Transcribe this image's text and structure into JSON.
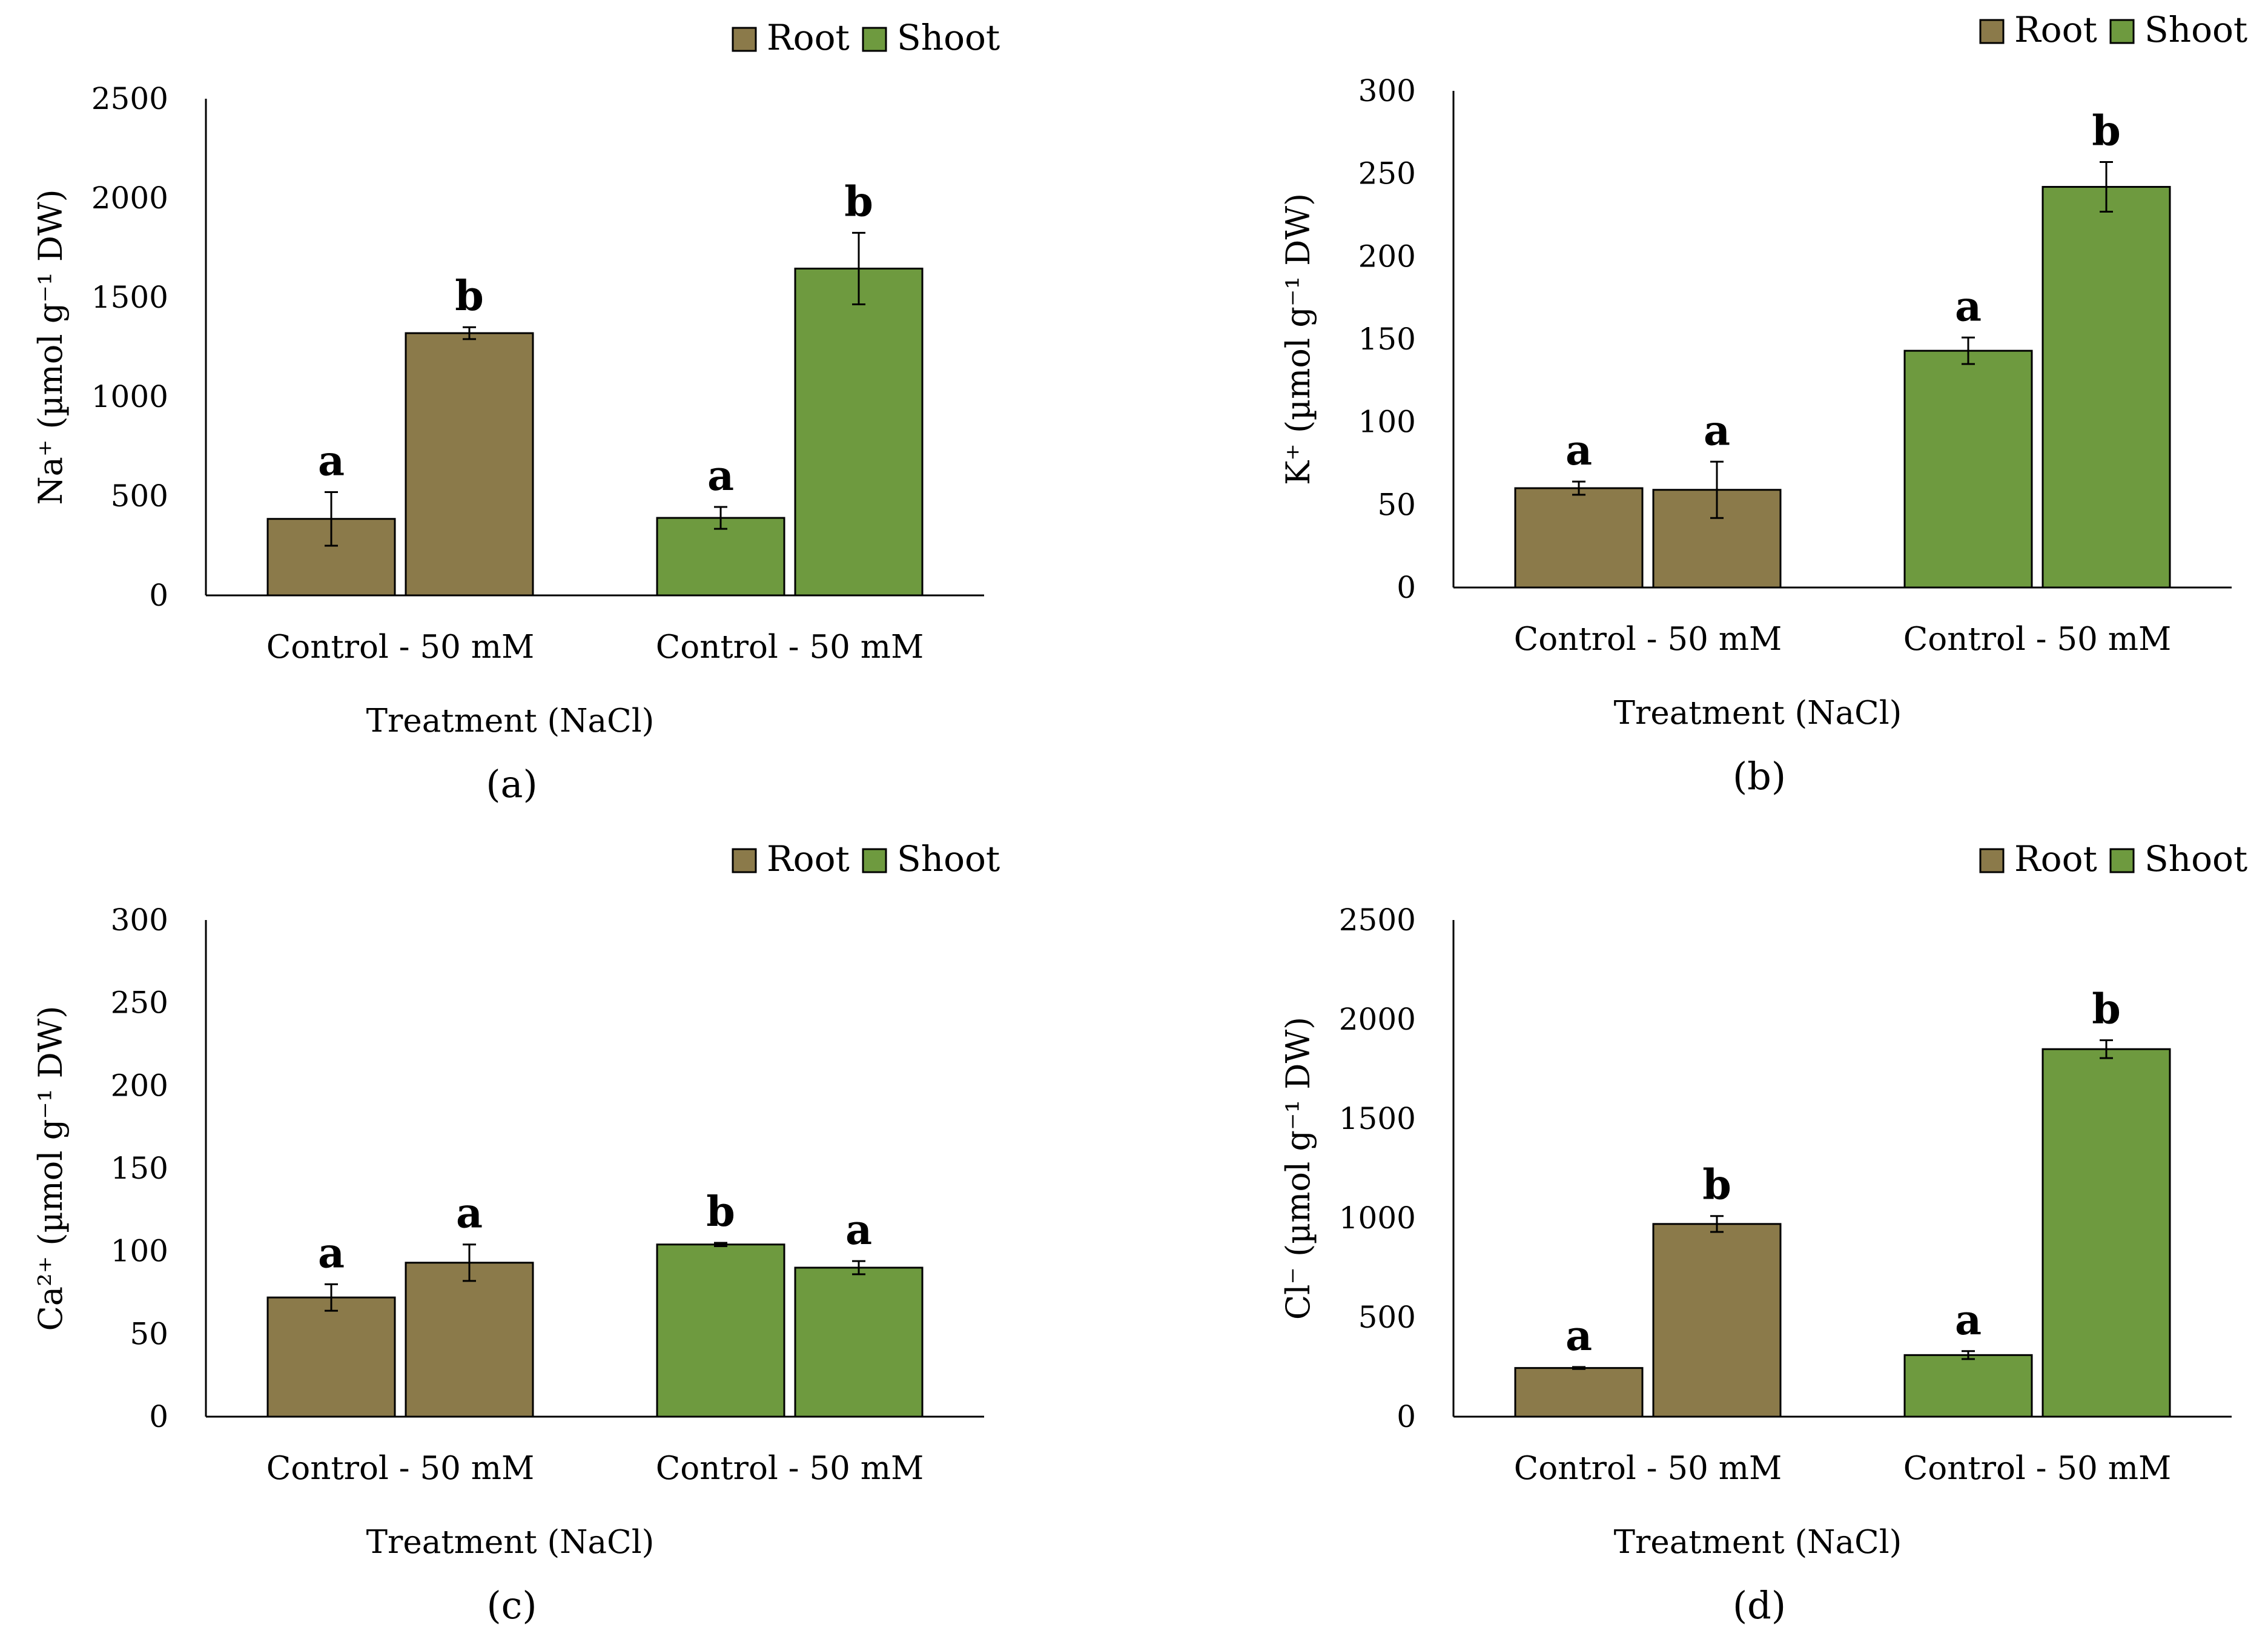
{
  "chart_data": [
    {
      "panel": "a",
      "type": "bar",
      "ylabel": "Na⁺ (µmol g⁻¹ DW)",
      "xlabel": "Treatment (NaCl)",
      "ylim": [
        0,
        2500
      ],
      "yticks": [
        0,
        500,
        1000,
        1500,
        2000,
        2500
      ],
      "legend": [
        "Root",
        "Shoot"
      ],
      "groups": [
        {
          "label": "Control - 50 mM",
          "series": "Root",
          "bars": [
            {
              "value": 385,
              "error": 135,
              "letter": "a"
            },
            {
              "value": 1320,
              "error": 30,
              "letter": "b"
            }
          ]
        },
        {
          "label": "Control - 50 mM",
          "series": "Shoot",
          "bars": [
            {
              "value": 390,
              "error": 55,
              "letter": "a"
            },
            {
              "value": 1645,
              "error": 180,
              "letter": "b"
            }
          ]
        }
      ]
    },
    {
      "panel": "b",
      "type": "bar",
      "ylabel": "K⁺ (µmol g⁻¹ DW)",
      "xlabel": "Treatment (NaCl)",
      "ylim": [
        0,
        300
      ],
      "yticks": [
        0,
        50,
        100,
        150,
        200,
        250,
        300
      ],
      "legend": [
        "Root",
        "Shoot"
      ],
      "groups": [
        {
          "label": "Control - 50 mM",
          "series": "Root",
          "bars": [
            {
              "value": 60,
              "error": 4,
              "letter": "a"
            },
            {
              "value": 59,
              "error": 17,
              "letter": "a"
            }
          ]
        },
        {
          "label": "Control - 50 mM",
          "series": "Shoot",
          "bars": [
            {
              "value": 143,
              "error": 8,
              "letter": "a"
            },
            {
              "value": 242,
              "error": 15,
              "letter": "b"
            }
          ]
        }
      ]
    },
    {
      "panel": "c",
      "type": "bar",
      "ylabel": "Ca²⁺ (µmol g⁻¹ DW)",
      "xlabel": "Treatment (NaCl)",
      "ylim": [
        0,
        300
      ],
      "yticks": [
        0,
        50,
        100,
        150,
        200,
        250,
        300
      ],
      "legend": [
        "Root",
        "Shoot"
      ],
      "groups": [
        {
          "label": "Control - 50 mM",
          "series": "Root",
          "bars": [
            {
              "value": 72,
              "error": 8,
              "letter": "a"
            },
            {
              "value": 93,
              "error": 11,
              "letter": "a"
            }
          ]
        },
        {
          "label": "Control - 50 mM",
          "series": "Shoot",
          "bars": [
            {
              "value": 104,
              "error": 1,
              "letter": "b"
            },
            {
              "value": 90,
              "error": 4,
              "letter": "a"
            }
          ]
        }
      ]
    },
    {
      "panel": "d",
      "type": "bar",
      "ylabel": "Cl⁻ (µmol g⁻¹ DW)",
      "xlabel": "Treatment (NaCl)",
      "ylim": [
        0,
        2500
      ],
      "yticks": [
        0,
        500,
        1000,
        1500,
        2000,
        2500
      ],
      "legend": [
        "Root",
        "Shoot"
      ],
      "groups": [
        {
          "label": "Control - 50 mM",
          "series": "Root",
          "bars": [
            {
              "value": 245,
              "error": 5,
              "letter": "a"
            },
            {
              "value": 970,
              "error": 40,
              "letter": "b"
            }
          ]
        },
        {
          "label": "Control - 50 mM",
          "series": "Shoot",
          "bars": [
            {
              "value": 310,
              "error": 20,
              "letter": "a"
            },
            {
              "value": 1850,
              "error": 45,
              "letter": "b"
            }
          ]
        }
      ]
    }
  ],
  "captions": [
    "(a)",
    "(b)",
    "(c)",
    "(d)"
  ],
  "colors": {
    "Root": "#8b7a4a",
    "Shoot": "#6e9a3f",
    "axis": "#000000"
  }
}
